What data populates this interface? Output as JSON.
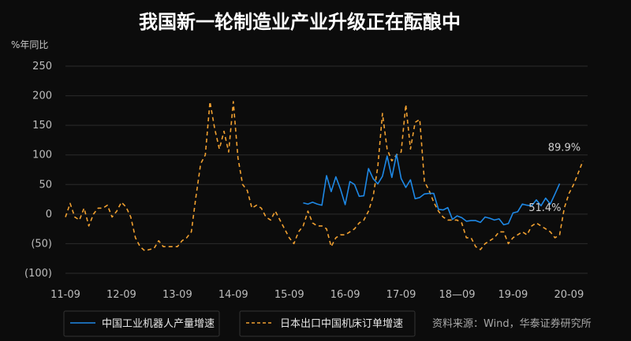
{
  "title": "我国新一轮制造业产业升级正在酝酿中",
  "y_unit": "%年同比",
  "source": "资料来源：Wind，华泰证券研究所",
  "colors": {
    "robot": "#1e88e5",
    "japan": "#f0a030"
  },
  "chart_data": {
    "type": "line",
    "y_ticks": [
      250,
      200,
      150,
      100,
      50,
      0,
      -50,
      -100
    ],
    "y_tick_labels": [
      "250",
      "200",
      "150",
      "100",
      "50",
      "0",
      "(50)",
      "(100)"
    ],
    "ylim": [
      -100,
      250
    ],
    "x_range": [
      0,
      112
    ],
    "x_ticks": [
      {
        "x": 0,
        "label": "11-09"
      },
      {
        "x": 12,
        "label": "12-09"
      },
      {
        "x": 24,
        "label": "13-09"
      },
      {
        "x": 36,
        "label": "14-09"
      },
      {
        "x": 48,
        "label": "15-09"
      },
      {
        "x": 60,
        "label": "16-09"
      },
      {
        "x": 72,
        "label": "17-09"
      },
      {
        "x": 84,
        "label": "18—09"
      },
      {
        "x": 96,
        "label": "19-09"
      },
      {
        "x": 108,
        "label": "20-09"
      }
    ],
    "grid": "horizontal",
    "legend_position": "bottom",
    "series": [
      {
        "name": "中国工业机器人产量增速",
        "style": "solid",
        "x_start": 51,
        "values": [
          19,
          17,
          20,
          17,
          15,
          65,
          38,
          63,
          42,
          16,
          55,
          50,
          30,
          31,
          77,
          60,
          51,
          64,
          98,
          62,
          101,
          60,
          45,
          58,
          26,
          28,
          34,
          35,
          35,
          8,
          7,
          11,
          -9,
          -3,
          -6,
          -12,
          -11,
          -11,
          -14,
          -5,
          -7,
          -10,
          -8,
          -18,
          -16,
          2,
          4,
          17,
          15,
          14,
          24,
          14,
          27,
          17,
          34,
          51.4
        ],
        "end_label": "51.4%"
      },
      {
        "name": "日本出口中国机床订单增速",
        "style": "dashed",
        "x_start": 0,
        "values": [
          -5,
          18,
          -5,
          -10,
          10,
          -20,
          0,
          10,
          10,
          15,
          -5,
          5,
          20,
          12,
          -5,
          -40,
          -55,
          -62,
          -60,
          -58,
          -45,
          -55,
          -55,
          -55,
          -55,
          -45,
          -40,
          -30,
          30,
          85,
          100,
          190,
          145,
          110,
          140,
          105,
          190,
          95,
          50,
          40,
          10,
          15,
          10,
          -5,
          -10,
          5,
          -10,
          -25,
          -40,
          -50,
          -30,
          -20,
          5,
          -15,
          -20,
          -20,
          -25,
          -55,
          -40,
          -35,
          -35,
          -30,
          -25,
          -15,
          -10,
          5,
          30,
          80,
          170,
          110,
          90,
          100,
          105,
          185,
          110,
          155,
          160,
          55,
          40,
          20,
          5,
          -5,
          -10,
          -10,
          -10,
          -15,
          -40,
          -40,
          -55,
          -60,
          -50,
          -45,
          -40,
          -30,
          -30,
          -50,
          -40,
          -35,
          -30,
          -35,
          -20,
          -15,
          -20,
          -25,
          -30,
          -40,
          -35,
          10,
          35,
          50,
          70,
          89.9
        ],
        "end_label": "89.9%"
      }
    ]
  }
}
